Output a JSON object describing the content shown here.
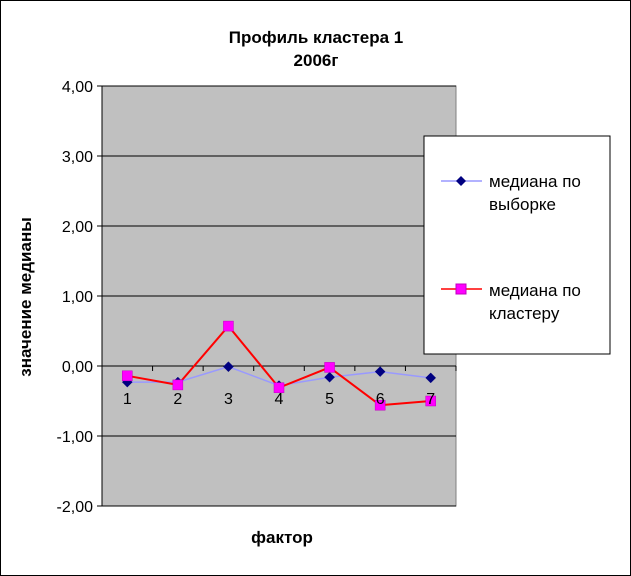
{
  "chart_data": {
    "type": "line",
    "title_lines": [
      "Профиль кластера 1",
      "2006г"
    ],
    "xlabel": "фактор",
    "ylabel": "значение медианы",
    "categories": [
      "1",
      "2",
      "3",
      "4",
      "5",
      "6",
      "7"
    ],
    "ylim": [
      -2,
      4
    ],
    "yticks": [
      4,
      3,
      2,
      1,
      0,
      -1,
      -2
    ],
    "ytick_labels": [
      "4,00",
      "3,00",
      "2,00",
      "1,00",
      "0,00",
      "-1,00",
      "-2,00"
    ],
    "grid": true,
    "legend_position": "right",
    "series": [
      {
        "name": "медиана по выборке",
        "legend_lines": [
          "медиана по",
          "выборке"
        ],
        "values": [
          -0.23,
          -0.23,
          -0.01,
          -0.28,
          -0.16,
          -0.08,
          -0.17
        ],
        "line_color": "#9999ff",
        "marker_color": "#000080",
        "marker": "diamond"
      },
      {
        "name": "медиана по кластеру",
        "legend_lines": [
          "медиана по",
          "кластеру"
        ],
        "values": [
          -0.14,
          -0.27,
          0.57,
          -0.31,
          -0.02,
          -0.56,
          -0.5
        ],
        "line_color": "#ff0000",
        "marker_color": "#ff00ff",
        "marker": "square"
      }
    ],
    "plot_background": "#c0c0c0"
  }
}
